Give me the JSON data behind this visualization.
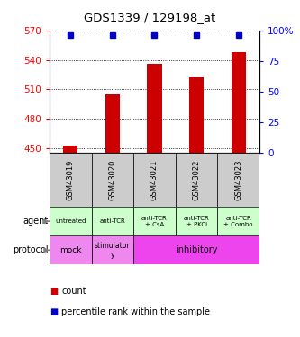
{
  "title": "GDS1339 / 129198_at",
  "samples": [
    "GSM43019",
    "GSM43020",
    "GSM43021",
    "GSM43022",
    "GSM43023"
  ],
  "count_values": [
    453,
    505,
    536,
    522,
    548
  ],
  "percentile_values": [
    96,
    96,
    96,
    96,
    96
  ],
  "ylim_left": [
    445,
    570
  ],
  "ylim_right": [
    0,
    100
  ],
  "yticks_left": [
    450,
    480,
    510,
    540,
    570
  ],
  "yticks_right": [
    0,
    25,
    50,
    75,
    100
  ],
  "bar_color": "#cc0000",
  "dot_color": "#0000cc",
  "agent_labels": [
    "untreated",
    "anti-TCR",
    "anti-TCR\n+ CsA",
    "anti-TCR\n+ PKCi",
    "anti-TCR\n+ Combo"
  ],
  "agent_bg": "#ccffcc",
  "sample_bg": "#cccccc",
  "protocol_bg_mock": "#ee88ee",
  "protocol_bg_stim": "#ee88ee",
  "protocol_bg_inhib": "#ee44ee",
  "row_label_agent": "agent",
  "row_label_protocol": "protocol",
  "legend_count": "count",
  "legend_percentile": "percentile rank within the sample"
}
